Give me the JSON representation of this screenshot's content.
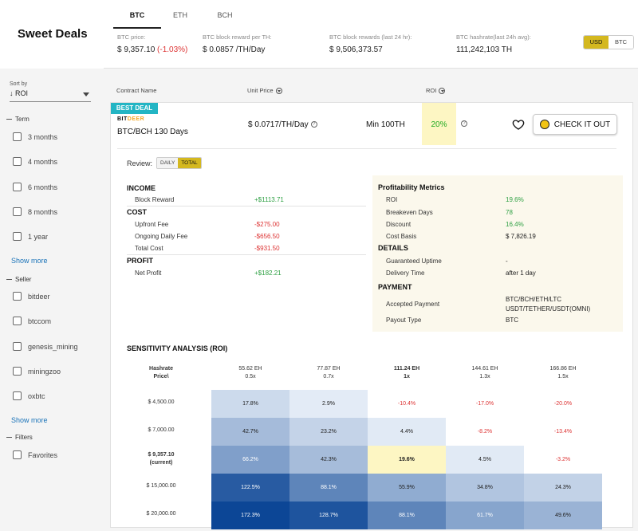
{
  "app": {
    "title": "Sweet Deals"
  },
  "tabs": [
    {
      "label": "BTC",
      "active": true
    },
    {
      "label": "ETH",
      "active": false
    },
    {
      "label": "BCH",
      "active": false
    }
  ],
  "stats": {
    "price_label": "BTC price:",
    "price_value": "$ 9,357.10",
    "price_change": "(-1.03%)",
    "reward_label": "BTC block reward per TH:",
    "reward_value": "$ 0.0857 /TH/Day",
    "rewards24_label": "BTC block rewards (last 24 hr):",
    "rewards24_value": "$ 9,506,373.57",
    "hashrate_label": "BTC hashrate(last 24h avg):",
    "hashrate_value": "111,242,103 TH"
  },
  "currency": {
    "usd": "USD",
    "btc": "BTC",
    "selected": "USD"
  },
  "sidebar": {
    "sort_label": "Sort by",
    "sort_value": "↓ ROI",
    "term_label": "Term",
    "terms": [
      "3 months",
      "4 months",
      "6 months",
      "8 months",
      "1 year"
    ],
    "show_more": "Show more",
    "seller_label": "Seller",
    "sellers": [
      "bitdeer",
      "btccom",
      "genesis_mining",
      "miningzoo",
      "oxbtc"
    ],
    "filters_label": "Filters",
    "filters": [
      "Favorites"
    ]
  },
  "columns": {
    "name": "Contract Name",
    "price": "Unit Price",
    "roi": "ROI"
  },
  "deal": {
    "badge": "BEST DEAL",
    "seller_logo_a": "BIT",
    "seller_logo_b": "DEER",
    "name": "BTC/BCH 130 Days",
    "unit_price": "$ 0.0717/TH/Day",
    "min_hashrate": "Min 100TH",
    "roi": "20%",
    "cta": "CHECK IT OUT",
    "review_label": "Review:",
    "review_daily": "DAILY",
    "review_total": "TOTAL"
  },
  "income": {
    "title": "INCOME",
    "block_reward_label": "Block Reward",
    "block_reward": "+$1113.71",
    "cost_title": "COST",
    "upfront_label": "Upfront Fee",
    "upfront": "-$275.00",
    "ongoing_label": "Ongoing Daily Fee",
    "ongoing": "-$656.50",
    "total_label": "Total Cost",
    "total": "-$931.50",
    "profit_title": "PROFIT",
    "net_label": "Net Profit",
    "net": "+$182.21"
  },
  "metrics": {
    "title": "Profitability Metrics",
    "roi_label": "ROI",
    "roi": "19.6%",
    "breakeven_label": "Breakeven Days",
    "breakeven": "78",
    "discount_label": "Discount",
    "discount": "16.4%",
    "cost_basis_label": "Cost Basis",
    "cost_basis": "$ 7,826.19",
    "details_title": "DETAILS",
    "uptime_label": "Guaranteed Uptime",
    "uptime": "-",
    "delivery_label": "Delivery Time",
    "delivery": "after 1 day",
    "payment_title": "PAYMENT",
    "accepted_label": "Accepted Payment",
    "accepted_1": "BTC/BCH/ETH/LTC",
    "accepted_2": "USDT/TETHER/USDT(OMNI)",
    "payout_label": "Payout Type",
    "payout": "BTC"
  },
  "sensitivity": {
    "title": "SENSITIVITY ANALYSIS (ROI)",
    "corner_1": "Hashrate",
    "corner_2": "Price\\",
    "hash_cols": [
      {
        "eh": "55.62 EH",
        "mult": "0.5x"
      },
      {
        "eh": "77.87 EH",
        "mult": "0.7x"
      },
      {
        "eh": "111.24 EH",
        "mult": "1x"
      },
      {
        "eh": "144.61 EH",
        "mult": "1.3x"
      },
      {
        "eh": "166.86 EH",
        "mult": "1.5x"
      }
    ],
    "rows": [
      {
        "price": "$ 4,500.00",
        "sub": "",
        "cells": [
          "17.8%",
          "2.9%",
          "-10.4%",
          "-17.0%",
          "-20.0%"
        ],
        "vals": [
          17.8,
          2.9,
          -10.4,
          -17.0,
          -20.0
        ]
      },
      {
        "price": "$ 7,000.00",
        "sub": "",
        "cells": [
          "42.7%",
          "23.2%",
          "4.4%",
          "-8.2%",
          "-13.4%"
        ],
        "vals": [
          42.7,
          23.2,
          4.4,
          -8.2,
          -13.4
        ]
      },
      {
        "price": "$ 9,357.10",
        "sub": "(current)",
        "cells": [
          "66.2%",
          "42.3%",
          "19.6%",
          "4.5%",
          "-3.2%"
        ],
        "vals": [
          66.2,
          42.3,
          19.6,
          4.5,
          -3.2
        ]
      },
      {
        "price": "$ 15,000.00",
        "sub": "",
        "cells": [
          "122.5%",
          "88.1%",
          "55.9%",
          "34.8%",
          "24.3%"
        ],
        "vals": [
          122.5,
          88.1,
          55.9,
          34.8,
          24.3
        ]
      },
      {
        "price": "$ 20,000.00",
        "sub": "",
        "cells": [
          "172.3%",
          "128.7%",
          "88.1%",
          "61.7%",
          "49.6%"
        ],
        "vals": [
          172.3,
          128.7,
          88.1,
          61.7,
          49.6
        ]
      }
    ]
  }
}
